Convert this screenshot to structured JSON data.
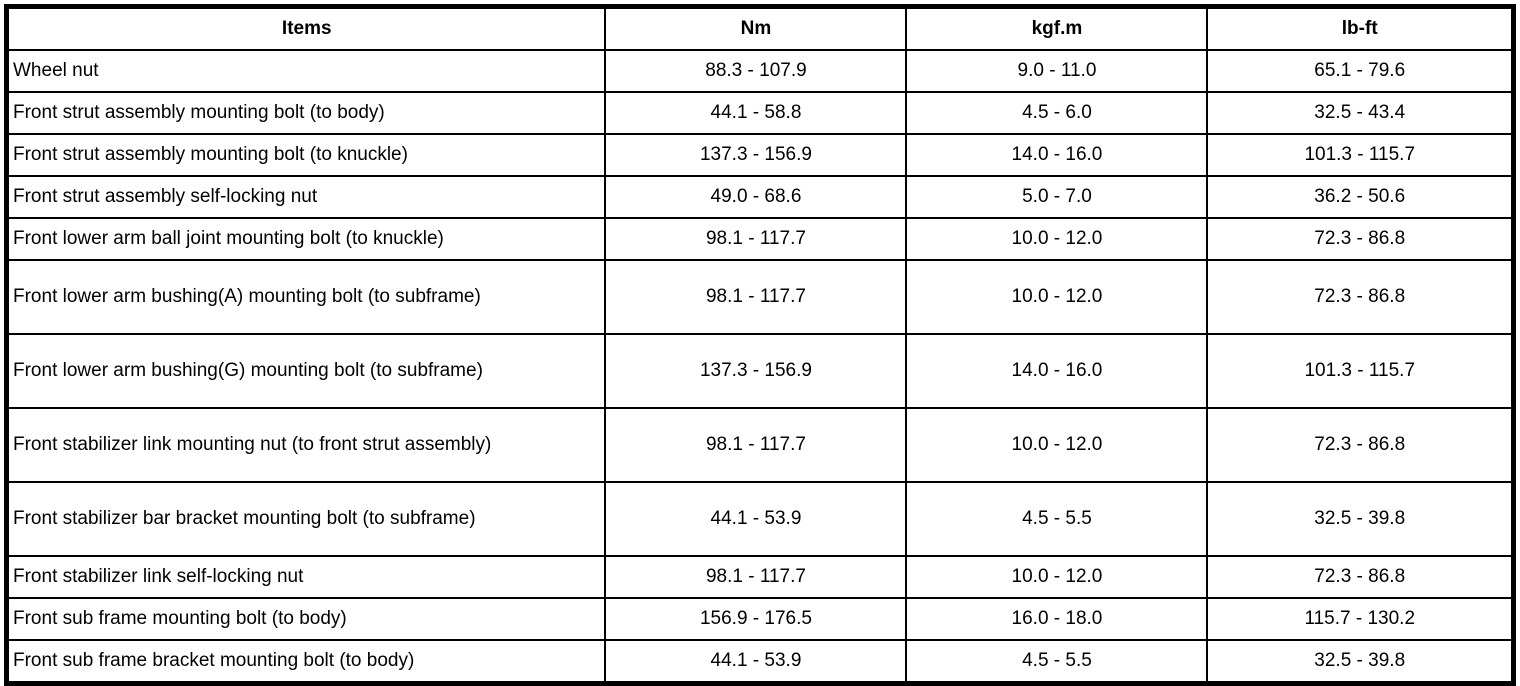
{
  "table": {
    "columns": {
      "items": "Items",
      "nm": "Nm",
      "kgfm": "kgf.m",
      "lbft": "lb-ft"
    },
    "rows": [
      {
        "item": "Wheel nut",
        "nm": "88.3 - 107.9",
        "kgfm": "9.0 - 11.0",
        "lbft": "65.1 - 79.6"
      },
      {
        "item": "Front strut assembly mounting bolt (to body)",
        "nm": "44.1 - 58.8",
        "kgfm": "4.5 - 6.0",
        "lbft": "32.5 - 43.4"
      },
      {
        "item": "Front strut assembly mounting bolt (to knuckle)",
        "nm": "137.3 - 156.9",
        "kgfm": "14.0 - 16.0",
        "lbft": "101.3 - 115.7"
      },
      {
        "item": "Front strut assembly self-locking nut",
        "nm": "49.0 - 68.6",
        "kgfm": "5.0 - 7.0",
        "lbft": "36.2 - 50.6"
      },
      {
        "item": "Front lower arm ball joint mounting bolt (to knuckle)",
        "nm": "98.1 - 117.7",
        "kgfm": "10.0 - 12.0",
        "lbft": "72.3 - 86.8"
      },
      {
        "item": "Front lower arm bushing(A) mounting bolt (to subframe)",
        "nm": "98.1 - 117.7",
        "kgfm": "10.0 - 12.0",
        "lbft": "72.3 - 86.8"
      },
      {
        "item": "Front lower arm bushing(G) mounting bolt (to subframe)",
        "nm": "137.3 - 156.9",
        "kgfm": "14.0 - 16.0",
        "lbft": "101.3 - 115.7"
      },
      {
        "item": "Front stabilizer link mounting nut (to front strut assembly)",
        "nm": "98.1 - 117.7",
        "kgfm": "10.0 - 12.0",
        "lbft": "72.3 - 86.8"
      },
      {
        "item": "Front stabilizer bar bracket mounting bolt (to subframe)",
        "nm": "44.1 - 53.9",
        "kgfm": "4.5 - 5.5",
        "lbft": "32.5 - 39.8"
      },
      {
        "item": "Front stabilizer link self-locking nut",
        "nm": "98.1 - 117.7",
        "kgfm": "10.0 - 12.0",
        "lbft": "72.3 - 86.8"
      },
      {
        "item": "Front sub frame mounting bolt (to body)",
        "nm": "156.9 - 176.5",
        "kgfm": "16.0 - 18.0",
        "lbft": "115.7 - 130.2"
      },
      {
        "item": "Front sub frame bracket mounting bolt (to body)",
        "nm": "44.1 - 53.9",
        "kgfm": "4.5 - 5.5",
        "lbft": "32.5 - 39.8"
      }
    ],
    "colors": {
      "border": "#000000",
      "background": "#ffffff",
      "text": "#000000"
    }
  }
}
